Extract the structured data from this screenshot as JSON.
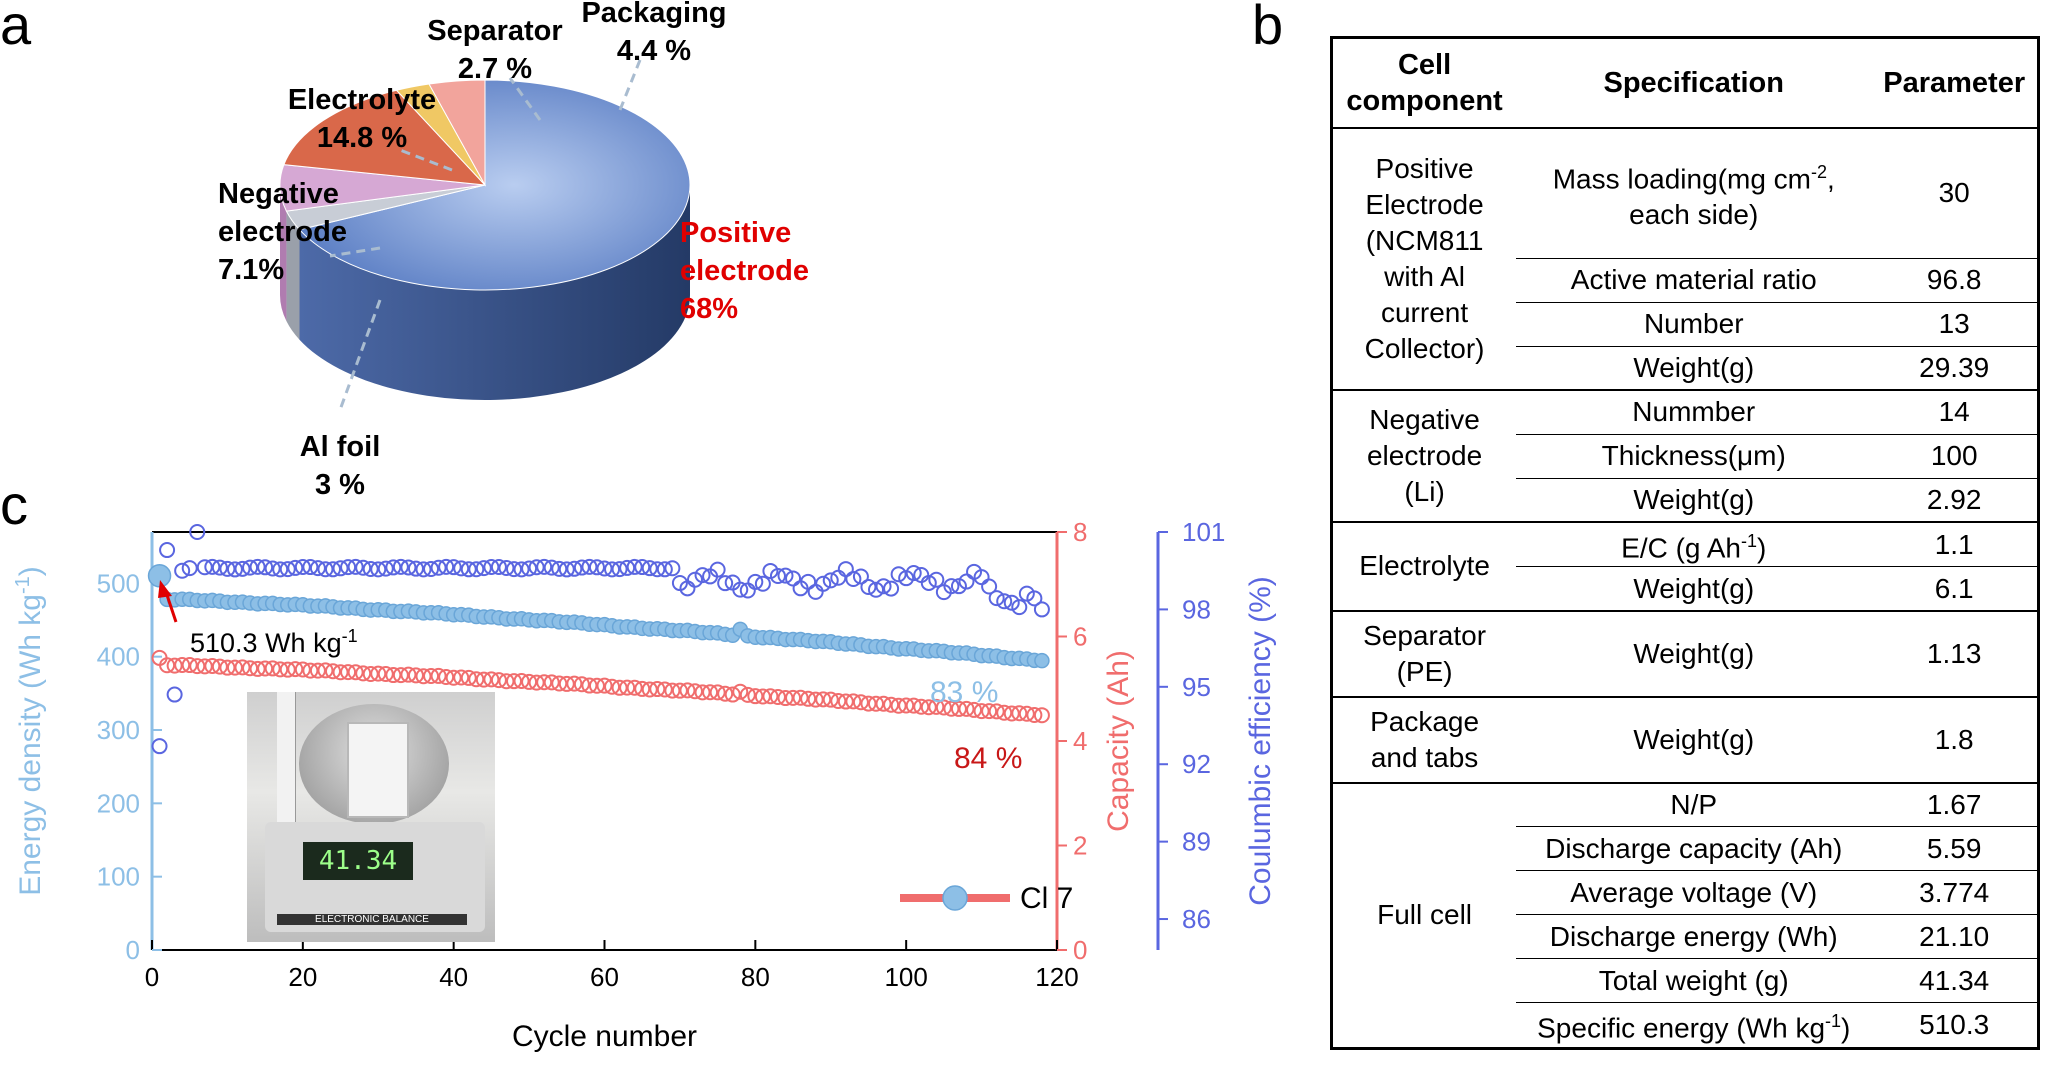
{
  "panel_letters": {
    "a": "a",
    "b": "b",
    "c": "c"
  },
  "colors": {
    "pie_positive": "#6f8fd0",
    "pie_negative": "#d6a8d4",
    "pie_electrolyte": "#d9684a",
    "pie_separator": "#f0c864",
    "pie_packaging": "#f2a49c",
    "pie_alfoil": "#c8cdd6",
    "energy": "#8dbfe6",
    "capacity": "#f06d6d",
    "ce": "#5a66e0",
    "highlight_red": "#e00000"
  },
  "chart_data": [
    {
      "type": "pie",
      "title": "",
      "slices": [
        {
          "name": "Positive electrode",
          "value": 68,
          "label": "68%"
        },
        {
          "name": "Al foil",
          "value": 3,
          "label": "3 %"
        },
        {
          "name": "Negative electrode",
          "value": 7.1,
          "label": "7.1%"
        },
        {
          "name": "Electrolyte",
          "value": 14.8,
          "label": "14.8 %"
        },
        {
          "name": "Separator",
          "value": 2.7,
          "label": "2.7 %"
        },
        {
          "name": "Packaging",
          "value": 4.4,
          "label": "4.4 %"
        }
      ],
      "labels": {
        "positive_1": "Positive",
        "positive_2": "electrode",
        "positive_3": "68%",
        "alfoil_1": "Al foil",
        "alfoil_2": "3 %",
        "negative_1": "Negative",
        "negative_2": "electrode",
        "negative_3": "7.1%",
        "electrolyte_1": "Electrolyte",
        "electrolyte_2": "14.8 %",
        "separator_1": "Separator",
        "separator_2": "2.7 %",
        "packaging_1": "Packaging",
        "packaging_2": "4.4 %"
      }
    },
    {
      "type": "table",
      "headers": [
        "Cell component",
        "Specification",
        "Parameter"
      ],
      "header_lines": {
        "component_1": "Cell",
        "component_2": "component",
        "spec": "Specification",
        "param": "Parameter"
      },
      "groups": [
        {
          "component": "Positive Electrode (NCM811 with Al current Collector)",
          "rows": [
            {
              "spec": "Mass loading(mg cm-2, each side)",
              "param": "30"
            },
            {
              "spec": "Active material ratio",
              "param": "96.8"
            },
            {
              "spec": "Number",
              "param": "13"
            },
            {
              "spec": "Weight(g)",
              "param": "29.39"
            }
          ]
        },
        {
          "component": "Negative electrode (Li)",
          "rows": [
            {
              "spec": "Nummber",
              "param": "14"
            },
            {
              "spec": "Thickness(μm)",
              "param": "100"
            },
            {
              "spec": "Weight(g)",
              "param": "2.92"
            }
          ]
        },
        {
          "component": "Electrolyte",
          "rows": [
            {
              "spec": "E/C (g Ah-1)",
              "param": "1.1"
            },
            {
              "spec": "Weight(g)",
              "param": "6.1"
            }
          ]
        },
        {
          "component": "Separator (PE)",
          "rows": [
            {
              "spec": "Weight(g)",
              "param": "1.13"
            }
          ]
        },
        {
          "component": "Package and tabs",
          "rows": [
            {
              "spec": "Weight(g)",
              "param": "1.8"
            }
          ]
        },
        {
          "component": "Full cell",
          "rows": [
            {
              "spec": "N/P",
              "param": "1.67"
            },
            {
              "spec": "Discharge capacity (Ah)",
              "param": "5.59"
            },
            {
              "spec": "Average voltage (V)",
              "param": "3.774"
            },
            {
              "spec": "Discharge energy (Wh)",
              "param": "21.10"
            },
            {
              "spec": "Total weight (g)",
              "param": "41.34"
            },
            {
              "spec": "Specific energy (Wh kg-1)",
              "param": "510.3"
            }
          ]
        }
      ],
      "cells": {
        "pos_comp_1": "Positive",
        "pos_comp_2": "Electrode",
        "pos_comp_3": "(NCM811",
        "pos_comp_4": "with Al",
        "pos_comp_5": "current",
        "pos_comp_6": "Collector)",
        "mass_spec_1": "Mass loading(mg cm",
        "mass_spec_sup": "-2",
        "mass_spec_2": ",",
        "mass_spec_3": "each side)",
        "neg_comp_1": "Negative",
        "neg_comp_2": "electrode",
        "neg_comp_3": "(Li)",
        "ec_spec_1": "E/C (g Ah",
        "ec_spec_sup": "-1",
        "ec_spec_2": ")",
        "sep_comp_1": "Separator",
        "sep_comp_2": "(PE)",
        "pkg_comp_1": "Package",
        "pkg_comp_2": "and tabs",
        "se_spec_1": "Specific energy (Wh kg",
        "se_spec_sup": "-1",
        "se_spec_2": ")"
      }
    },
    {
      "type": "scatter",
      "x_label": "Cycle number",
      "x_range": [
        0,
        120
      ],
      "x_ticks": [
        0,
        20,
        40,
        60,
        80,
        100,
        120
      ],
      "left_axis": {
        "label_1": "Energy density (Wh kg",
        "label_sup": "-1",
        "label_2": ")",
        "range": [
          0,
          570
        ],
        "ticks": [
          0,
          100,
          200,
          300,
          400,
          500
        ]
      },
      "right_axis_1": {
        "label": "Capacity (Ah)",
        "range": [
          0,
          8
        ],
        "ticks": [
          0,
          2,
          4,
          6,
          8
        ]
      },
      "right_axis_2": {
        "label": "Coulumbic efficiency (%)",
        "range": [
          84.8,
          101
        ],
        "ticks": [
          86,
          89,
          92,
          95,
          98,
          101
        ]
      },
      "legend": {
        "label": "Cl 7",
        "position": "bottom-right"
      },
      "annotations": {
        "energy_value_1": "510.3 Wh kg",
        "energy_value_sup": "-1",
        "retention_energy": "83 %",
        "retention_capacity": "84 %"
      },
      "series": [
        {
          "name": "Energy density",
          "axis": "left",
          "unit": "Wh kg-1",
          "points_summary": {
            "first": 510.3,
            "cycle2_to_75_from": 478,
            "cycle2_to_75_to": 440,
            "cycle78": 432,
            "cycle118": 395
          }
        },
        {
          "name": "Capacity",
          "axis": "right_1",
          "unit": "Ah",
          "points_summary": {
            "first": 5.59,
            "cycle2": 5.45,
            "cycle118": 4.5
          }
        },
        {
          "name": "Coulumbic efficiency",
          "axis": "right_2",
          "unit": "%",
          "points_summary": {
            "cycle1": 92.7,
            "cycle4": 94.7,
            "cycle6": 101,
            "stable": 99.6,
            "cycle118": 98
          }
        }
      ],
      "photo_readout": "41.34",
      "photo_brand": "ELECTRONIC BALANCE"
    }
  ]
}
